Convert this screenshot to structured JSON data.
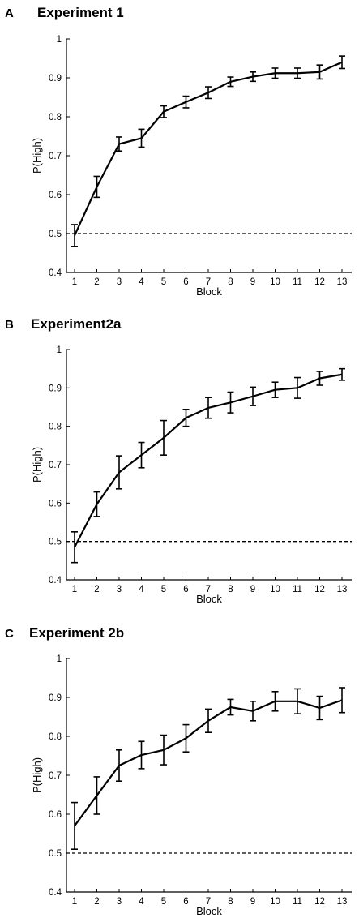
{
  "chart_data": [
    {
      "type": "line",
      "panel_letter": "A",
      "title": "Experiment 1",
      "xlabel": "Block",
      "ylabel": "P(High)",
      "x": [
        1,
        2,
        3,
        4,
        5,
        6,
        7,
        8,
        9,
        10,
        11,
        12,
        13
      ],
      "ylim": [
        0.4,
        1
      ],
      "yticks": [
        "0.4",
        "0.5",
        "0.6",
        "0.7",
        "0.8",
        "0.9",
        "1"
      ],
      "reference_line": 0.5,
      "grid": false,
      "series": [
        {
          "values": [
            0.495,
            0.62,
            0.73,
            0.745,
            0.813,
            0.838,
            0.862,
            0.89,
            0.903,
            0.912,
            0.912,
            0.915,
            0.94
          ],
          "error": [
            0.028,
            0.027,
            0.018,
            0.023,
            0.015,
            0.015,
            0.015,
            0.012,
            0.012,
            0.013,
            0.013,
            0.018,
            0.016
          ]
        }
      ]
    },
    {
      "type": "line",
      "panel_letter": "B",
      "title": "Experiment2a",
      "xlabel": "Block",
      "ylabel": "P(High)",
      "x": [
        1,
        2,
        3,
        4,
        5,
        6,
        7,
        8,
        9,
        10,
        11,
        12,
        13
      ],
      "ylim": [
        0.4,
        1
      ],
      "yticks": [
        "0.4",
        "0.5",
        "0.6",
        "0.7",
        "0.8",
        "0.9",
        "1"
      ],
      "reference_line": 0.5,
      "grid": false,
      "series": [
        {
          "values": [
            0.485,
            0.597,
            0.68,
            0.725,
            0.77,
            0.822,
            0.848,
            0.862,
            0.878,
            0.895,
            0.9,
            0.925,
            0.935
          ],
          "error": [
            0.04,
            0.032,
            0.043,
            0.033,
            0.045,
            0.022,
            0.027,
            0.027,
            0.024,
            0.02,
            0.027,
            0.018,
            0.015
          ]
        }
      ]
    },
    {
      "type": "line",
      "panel_letter": "C",
      "title": "Experiment 2b",
      "xlabel": "Block",
      "ylabel": "P(High)",
      "x": [
        1,
        2,
        3,
        4,
        5,
        6,
        7,
        8,
        9,
        10,
        11,
        12,
        13
      ],
      "ylim": [
        0.4,
        1
      ],
      "yticks": [
        "0.4",
        "0.5",
        "0.6",
        "0.7",
        "0.8",
        "0.9",
        "1"
      ],
      "reference_line": 0.5,
      "grid": false,
      "series": [
        {
          "values": [
            0.57,
            0.648,
            0.725,
            0.752,
            0.765,
            0.795,
            0.84,
            0.875,
            0.865,
            0.89,
            0.89,
            0.873,
            0.893
          ],
          "error": [
            0.06,
            0.048,
            0.04,
            0.035,
            0.038,
            0.035,
            0.03,
            0.02,
            0.025,
            0.025,
            0.032,
            0.03,
            0.032
          ]
        }
      ]
    }
  ]
}
